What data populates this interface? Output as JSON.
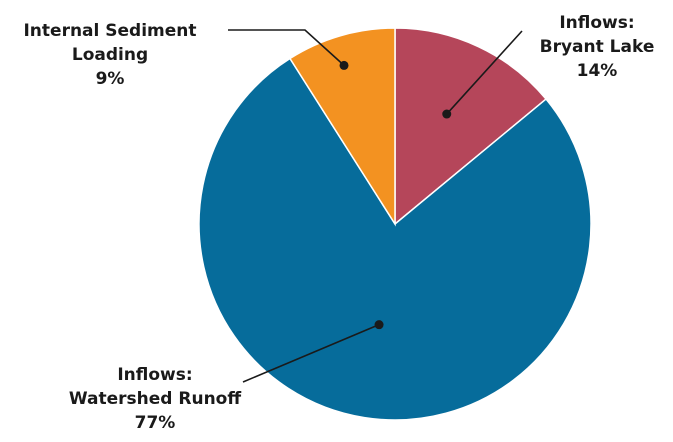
{
  "chart_data": {
    "type": "pie",
    "title": "",
    "start_angle_deg": 0,
    "direction": "clockwise",
    "slices": [
      {
        "label_lines": [
          "Inflows:",
          "Bryant Lake",
          "14%"
        ],
        "value": 14,
        "color": "#b5465a"
      },
      {
        "label_lines": [
          "Inflows:",
          "Watershed Runoff",
          "77%"
        ],
        "value": 77,
        "color": "#066c9b"
      },
      {
        "label_lines": [
          "Internal Sediment",
          "Loading",
          "9%"
        ],
        "value": 9,
        "color": "#f39221"
      }
    ]
  }
}
